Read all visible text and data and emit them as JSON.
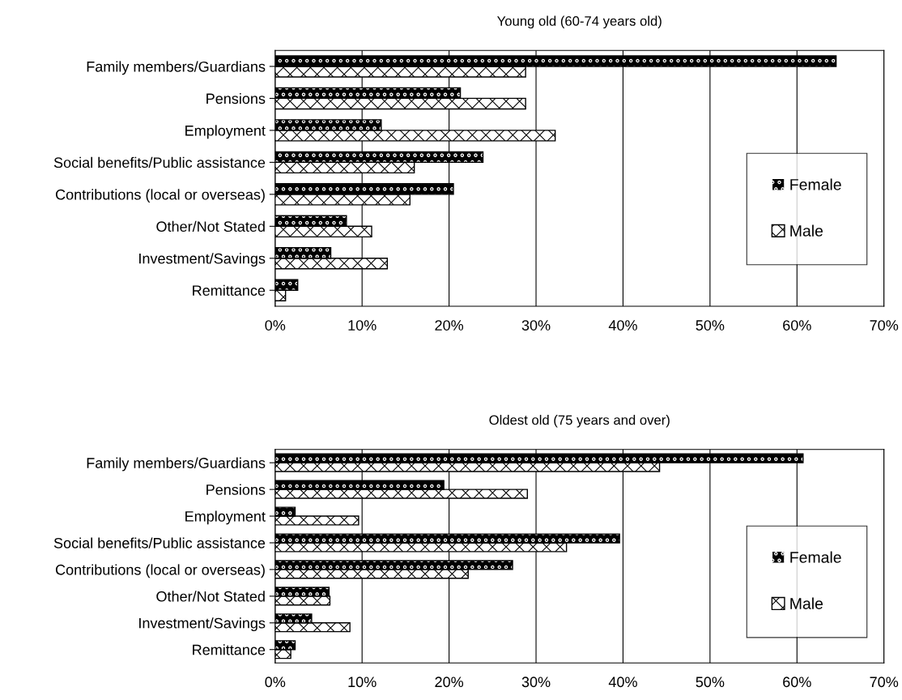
{
  "chart_data": [
    {
      "type": "bar",
      "orientation": "horizontal",
      "title": "Young old (60-74 years old)",
      "categories": [
        "Family members/Guardians",
        "Pensions",
        "Employment",
        "Social benefits/Public assistance",
        "Contributions (local or overseas)",
        "Other/Not Stated",
        "Investment/Savings",
        "Remittance"
      ],
      "series": [
        {
          "name": "Female",
          "color": "#000000",
          "values": [
            64.5,
            21.3,
            12.2,
            23.9,
            20.5,
            8.2,
            6.4,
            2.6
          ]
        },
        {
          "name": "Male",
          "color": "#ffffff",
          "values": [
            28.8,
            28.8,
            32.2,
            16.0,
            15.5,
            11.1,
            12.9,
            1.2
          ]
        }
      ],
      "xlim": [
        0,
        70
      ],
      "xticks": [
        {
          "value": 0,
          "label": "0%"
        },
        {
          "value": 10,
          "label": "10%"
        },
        {
          "value": 20,
          "label": "20%"
        },
        {
          "value": 30,
          "label": "30%"
        },
        {
          "value": 40,
          "label": "40%"
        },
        {
          "value": 50,
          "label": "50%"
        },
        {
          "value": 60,
          "label": "60%"
        },
        {
          "value": 70,
          "label": "70%"
        }
      ],
      "grid": "x",
      "legend": "right"
    },
    {
      "type": "bar",
      "orientation": "horizontal",
      "title": "Oldest old (75 years and over)",
      "categories": [
        "Family members/Guardians",
        "Pensions",
        "Employment",
        "Social benefits/Public assistance",
        "Contributions (local or overseas)",
        "Other/Not Stated",
        "Investment/Savings",
        "Remittance"
      ],
      "series": [
        {
          "name": "Female",
          "color": "#000000",
          "values": [
            60.7,
            19.4,
            2.3,
            39.6,
            27.3,
            6.2,
            4.2,
            2.3
          ]
        },
        {
          "name": "Male",
          "color": "#ffffff",
          "values": [
            44.2,
            29.0,
            9.6,
            33.5,
            22.2,
            6.3,
            8.6,
            1.8
          ]
        }
      ],
      "xlim": [
        0,
        70
      ],
      "xticks": [
        {
          "value": 0,
          "label": "0%"
        },
        {
          "value": 10,
          "label": "10%"
        },
        {
          "value": 20,
          "label": "20%"
        },
        {
          "value": 30,
          "label": "30%"
        },
        {
          "value": 40,
          "label": "40%"
        },
        {
          "value": 50,
          "label": "50%"
        },
        {
          "value": 60,
          "label": "60%"
        },
        {
          "value": 70,
          "label": "70%"
        }
      ],
      "grid": "x",
      "legend": "right"
    }
  ]
}
